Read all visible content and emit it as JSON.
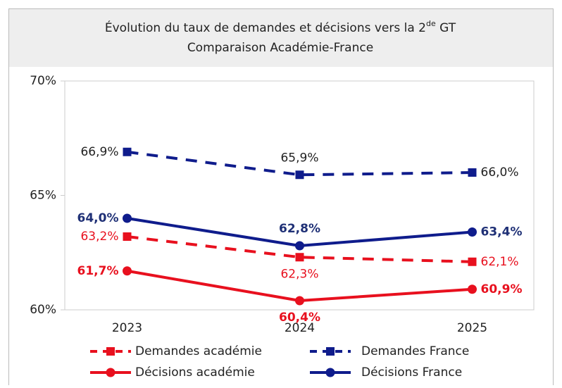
{
  "chart_data": {
    "type": "line",
    "title": [
      "Évolution du taux de demandes et décisions vers la 2",
      "de",
      " GT"
    ],
    "subtitle": "Comparaison Académie-France",
    "categories": [
      "2023",
      "2024",
      "2025"
    ],
    "ylim": [
      60,
      70
    ],
    "yticks": [
      {
        "value": 60,
        "label": "60%"
      },
      {
        "value": 65,
        "label": "65%"
      },
      {
        "value": 70,
        "label": "70%"
      }
    ],
    "series": [
      {
        "name": "Demandes académie",
        "color": "#e8101e",
        "dashed": true,
        "marker": "square",
        "values": [
          63.2,
          62.3,
          62.1
        ],
        "value_labels": [
          "63,2%",
          "62,3%",
          "62,1%"
        ]
      },
      {
        "name": "Demandes France",
        "color": "#0f1c8c",
        "dashed": true,
        "marker": "square",
        "values": [
          66.9,
          65.9,
          66.0
        ],
        "value_labels": [
          "66,9%",
          "65,9%",
          "66,0%"
        ]
      },
      {
        "name": "Décisions académie",
        "color": "#e8101e",
        "dashed": false,
        "marker": "circle",
        "values": [
          61.7,
          60.4,
          60.9
        ],
        "value_labels": [
          "61,7%",
          "60,4%",
          "60,9%"
        ]
      },
      {
        "name": "Décisions France",
        "color": "#0f1c8c",
        "dashed": false,
        "marker": "circle",
        "values": [
          64.0,
          62.8,
          63.4
        ],
        "value_labels": [
          "64,0%",
          "62,8%",
          "63,4%"
        ]
      }
    ]
  }
}
